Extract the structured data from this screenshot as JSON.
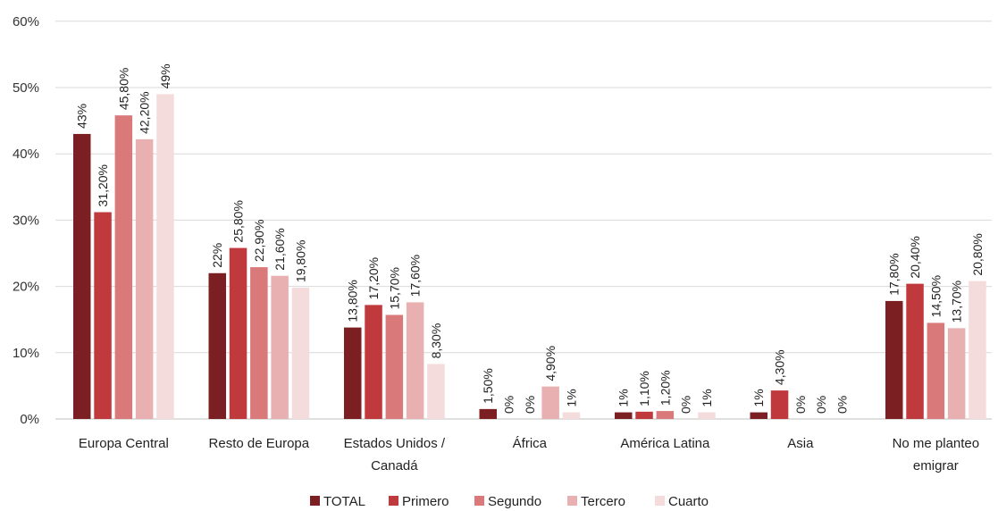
{
  "chart_data": {
    "type": "bar",
    "categories": [
      [
        "Europa Central"
      ],
      [
        "Resto de Europa"
      ],
      [
        "Estados Unidos /",
        "Canadá"
      ],
      [
        "África"
      ],
      [
        "América Latina"
      ],
      [
        "Asia"
      ],
      [
        "No me planteo",
        "emigrar"
      ]
    ],
    "series": [
      {
        "name": "TOTAL",
        "color": "#7b1f22",
        "values": [
          43,
          22,
          13.8,
          1.5,
          1,
          1,
          17.8
        ],
        "labels": [
          "43%",
          "22%",
          "13,80%",
          "1,50%",
          "1%",
          "1%",
          "17,80%"
        ]
      },
      {
        "name": "Primero",
        "color": "#c0393d",
        "values": [
          31.2,
          25.8,
          17.2,
          0,
          1.1,
          4.3,
          20.4
        ],
        "labels": [
          "31,20%",
          "25,80%",
          "17,20%",
          "0%",
          "1,10%",
          "4,30%",
          "20,40%"
        ]
      },
      {
        "name": "Segundo",
        "color": "#d9797a",
        "values": [
          45.8,
          22.9,
          15.7,
          0,
          1.2,
          0,
          14.5
        ],
        "labels": [
          "45,80%",
          "22,90%",
          "15,70%",
          "0%",
          "1,20%",
          "0%",
          "14,50%"
        ]
      },
      {
        "name": "Tercero",
        "color": "#e8b0b0",
        "values": [
          42.2,
          21.6,
          17.6,
          4.9,
          0,
          0,
          13.7
        ],
        "labels": [
          "42,20%",
          "21,60%",
          "17,60%",
          "4,90%",
          "0%",
          "0%",
          "13,70%"
        ]
      },
      {
        "name": "Cuarto",
        "color": "#f5dcdc",
        "values": [
          49,
          19.8,
          8.3,
          1,
          1,
          0,
          20.8
        ],
        "labels": [
          "49%",
          "19,80%",
          "8,30%",
          "1%",
          "1%",
          "0%",
          "20,80%"
        ]
      }
    ],
    "ylim": [
      0,
      60
    ],
    "yticks": [
      "0%",
      "10%",
      "20%",
      "30%",
      "40%",
      "50%",
      "60%"
    ],
    "grid": true,
    "legend": "bottom"
  }
}
